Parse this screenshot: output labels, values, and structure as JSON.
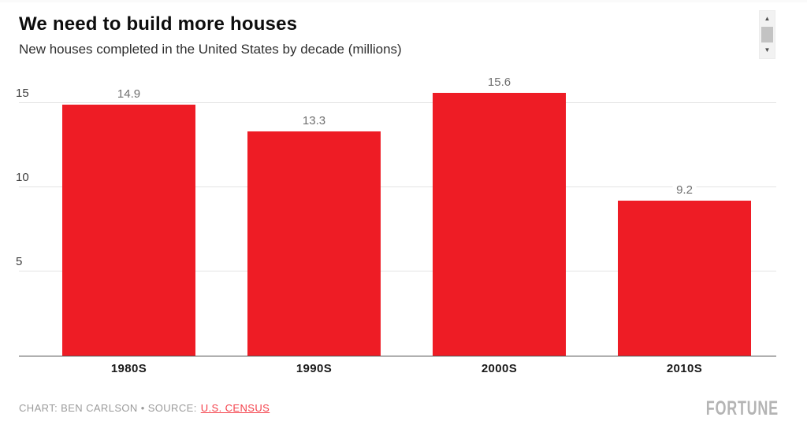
{
  "page": {
    "title": "We need to build more houses",
    "subtitle": "New houses completed in the United States by decade (millions)",
    "footer": {
      "credit_prefix": "CHART: BEN CARLSON • SOURCE:",
      "source_link": "U.S. CENSUS"
    },
    "brand": "FORTUNE"
  },
  "scrollbar": {
    "up_icon": "▲",
    "down_icon": "▼"
  },
  "colors": {
    "bar": "#ee1c25",
    "source_link": "#f4404a",
    "gridline": "#e4e4e4",
    "axis_line": "#4f4f4f",
    "value_label": "#6f6f6f",
    "footer_text": "#9b9b9b",
    "brand": "#b4b4b4"
  },
  "chart_data": {
    "type": "bar",
    "title": "We need to build more houses",
    "subtitle": "New houses completed in the United States by decade (millions)",
    "categories": [
      "1980S",
      "1990S",
      "2000S",
      "2010S"
    ],
    "values": [
      14.9,
      13.3,
      15.6,
      9.2
    ],
    "value_labels": [
      "14.9",
      "13.3",
      "15.6",
      "9.2"
    ],
    "xlabel": "",
    "ylabel": "",
    "yticks": [
      5,
      10,
      15
    ],
    "ylim": [
      0,
      16.5
    ],
    "grid": true,
    "legend": false,
    "bar_color": "#ee1c25"
  }
}
